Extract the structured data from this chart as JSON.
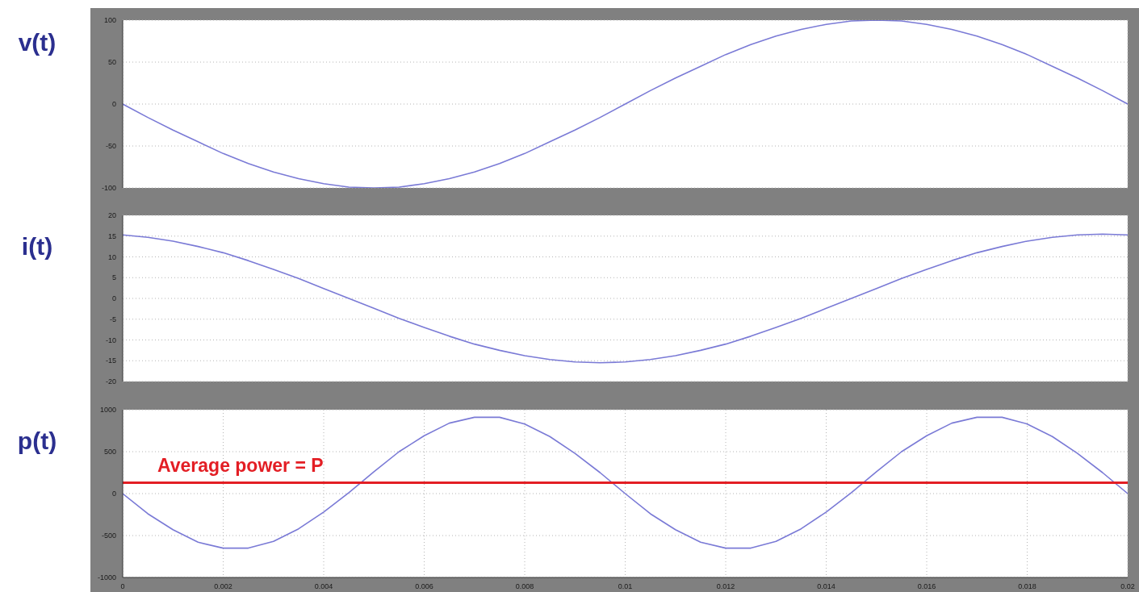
{
  "chart_data": [
    {
      "type": "line",
      "ylabel": "v(t)",
      "x": [
        0,
        0.0005,
        0.001,
        0.0015,
        0.002,
        0.0025,
        0.003,
        0.0035,
        0.004,
        0.0045,
        0.005,
        0.0055,
        0.006,
        0.0065,
        0.007,
        0.0075,
        0.008,
        0.0085,
        0.009,
        0.0095,
        0.01,
        0.0105,
        0.011,
        0.0115,
        0.012,
        0.0125,
        0.013,
        0.0135,
        0.014,
        0.0145,
        0.015,
        0.0155,
        0.016,
        0.0165,
        0.017,
        0.0175,
        0.018,
        0.0185,
        0.019,
        0.0195,
        0.02
      ],
      "series": [
        {
          "color": "#7a7ad6",
          "values": [
            0,
            -16,
            -31,
            -45,
            -59,
            -71,
            -81,
            -89,
            -95,
            -99,
            -100,
            -99,
            -95,
            -89,
            -81,
            -71,
            -59,
            -45,
            -31,
            -16,
            0,
            16,
            31,
            45,
            59,
            71,
            81,
            89,
            95,
            99,
            100,
            99,
            95,
            89,
            81,
            71,
            59,
            45,
            31,
            16,
            0
          ]
        }
      ],
      "xlim": [
        0,
        0.02
      ],
      "xticks": [
        0,
        0.002,
        0.004,
        0.006,
        0.008,
        0.01,
        0.012,
        0.014,
        0.016,
        0.018,
        0.02
      ],
      "ylim": [
        -100,
        100
      ],
      "yticks": [
        -100,
        -50,
        0,
        50,
        100
      ],
      "grid": true,
      "tick_labels": "y"
    },
    {
      "type": "line",
      "ylabel": "i(t)",
      "x": [
        0,
        0.0005,
        0.001,
        0.0015,
        0.002,
        0.0025,
        0.003,
        0.0035,
        0.004,
        0.0045,
        0.005,
        0.0055,
        0.006,
        0.0065,
        0.007,
        0.0075,
        0.008,
        0.0085,
        0.009,
        0.0095,
        0.01,
        0.0105,
        0.011,
        0.0115,
        0.012,
        0.0125,
        0.013,
        0.0135,
        0.014,
        0.0145,
        0.015,
        0.0155,
        0.016,
        0.0165,
        0.017,
        0.0175,
        0.018,
        0.0185,
        0.019,
        0.0195,
        0.02
      ],
      "series": [
        {
          "color": "#7a7ad6",
          "values": [
            15.3,
            14.7,
            13.8,
            12.5,
            11,
            9.1,
            7,
            4.8,
            2.4,
            0,
            -2.4,
            -4.8,
            -7,
            -9.1,
            -11,
            -12.5,
            -13.8,
            -14.7,
            -15.3,
            -15.5,
            -15.3,
            -14.7,
            -13.8,
            -12.5,
            -11,
            -9.1,
            -7,
            -4.8,
            -2.4,
            0,
            2.4,
            4.8,
            7,
            9.1,
            11,
            12.5,
            13.8,
            14.7,
            15.3,
            15.5,
            15.3
          ]
        }
      ],
      "xlim": [
        0,
        0.02
      ],
      "xticks": [
        0,
        0.002,
        0.004,
        0.006,
        0.008,
        0.01,
        0.012,
        0.014,
        0.016,
        0.018,
        0.02
      ],
      "ylim": [
        -20,
        20
      ],
      "yticks": [
        -20,
        -15,
        -10,
        -5,
        0,
        5,
        10,
        15,
        20
      ],
      "grid": true,
      "tick_labels": "y"
    },
    {
      "type": "line",
      "ylabel": "p(t)",
      "x": [
        0,
        0.0005,
        0.001,
        0.0015,
        0.002,
        0.0025,
        0.003,
        0.0035,
        0.004,
        0.0045,
        0.005,
        0.0055,
        0.006,
        0.0065,
        0.007,
        0.0075,
        0.008,
        0.0085,
        0.009,
        0.0095,
        0.01,
        0.0105,
        0.011,
        0.0115,
        0.012,
        0.0125,
        0.013,
        0.0135,
        0.014,
        0.0145,
        0.015,
        0.0155,
        0.016,
        0.0165,
        0.017,
        0.0175,
        0.018,
        0.0185,
        0.019,
        0.0195,
        0.02
      ],
      "series": [
        {
          "color": "#7a7ad6",
          "values": [
            0,
            -240,
            -430,
            -580,
            -650,
            -650,
            -570,
            -420,
            -220,
            10,
            260,
            500,
            690,
            840,
            910,
            910,
            830,
            680,
            480,
            250,
            0,
            -240,
            -430,
            -580,
            -650,
            -650,
            -570,
            -420,
            -220,
            10,
            260,
            500,
            690,
            840,
            910,
            910,
            830,
            680,
            480,
            250,
            0
          ]
        }
      ],
      "xlim": [
        0,
        0.02
      ],
      "xticks": [
        0,
        0.002,
        0.004,
        0.006,
        0.008,
        0.01,
        0.012,
        0.014,
        0.016,
        0.018,
        0.02
      ],
      "ylim": [
        -1000,
        1000
      ],
      "yticks": [
        -1000,
        -500,
        0,
        500,
        1000
      ],
      "grid": true,
      "ref_lines": [
        {
          "axis": "y",
          "value": 130,
          "label": "Average power = P",
          "color": "#e31e24"
        }
      ]
    }
  ]
}
